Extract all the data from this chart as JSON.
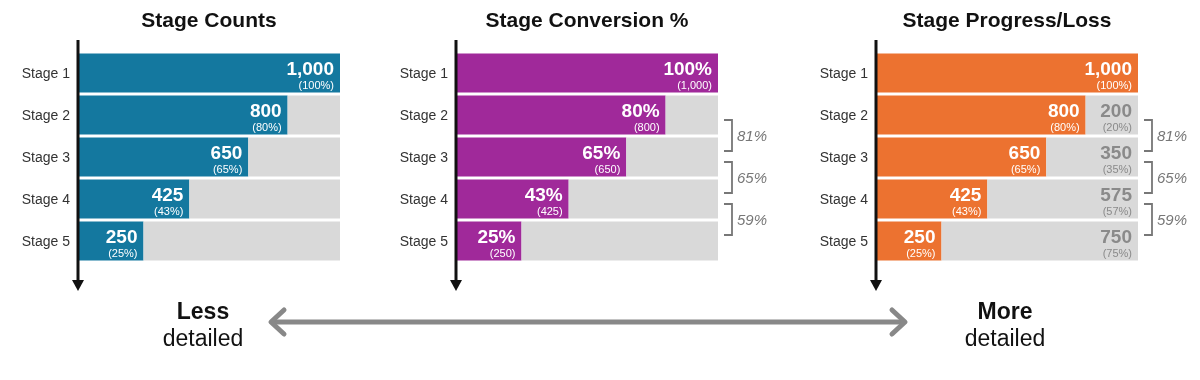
{
  "chart_data": [
    {
      "type": "bar",
      "title": "Stage Counts",
      "orientation": "horizontal",
      "stacked": true,
      "categories": [
        "Stage 1",
        "Stage 2",
        "Stage 3",
        "Stage 4",
        "Stage 5"
      ],
      "series": [
        {
          "color": "#14789f",
          "values": [
            1000,
            800,
            650,
            425,
            250
          ],
          "value_labels": [
            "1,000 (100%)",
            "800 (80%)",
            "650 (65%)",
            "425 (43%)",
            "250 (25%)"
          ]
        },
        {
          "color": "#d9d9d9",
          "values": [
            0,
            200,
            350,
            575,
            750
          ]
        }
      ]
    },
    {
      "type": "bar",
      "title": "Stage Conversion %",
      "orientation": "horizontal",
      "stacked": true,
      "categories": [
        "Stage 1",
        "Stage 2",
        "Stage 3",
        "Stage 4",
        "Stage 5"
      ],
      "series": [
        {
          "color": "#a0299a",
          "values": [
            100,
            80,
            65,
            43,
            25
          ],
          "value_labels": [
            "100% (1,000)",
            "80% (800)",
            "65% (650)",
            "43% (425)",
            "25% (250)"
          ]
        },
        {
          "color": "#d9d9d9",
          "values": [
            0,
            20,
            35,
            57,
            75
          ]
        }
      ],
      "annotations": [
        "81%",
        "65%",
        "59%"
      ]
    },
    {
      "type": "bar",
      "title": "Stage Progress/Loss",
      "orientation": "horizontal",
      "stacked": true,
      "categories": [
        "Stage 1",
        "Stage 2",
        "Stage 3",
        "Stage 4",
        "Stage 5"
      ],
      "series": [
        {
          "color": "#ec7230",
          "values": [
            1000,
            800,
            650,
            425,
            250
          ],
          "value_labels": [
            "1,000 (100%)",
            "800 (80%)",
            "650 (65%)",
            "425 (43%)",
            "250 (25%)"
          ]
        },
        {
          "color": "#d9d9d9",
          "values": [
            0,
            200,
            350,
            575,
            750
          ],
          "value_labels": [
            null,
            "200 (20%)",
            "350 (35%)",
            "575 (57%)",
            "750 (75%)"
          ]
        }
      ],
      "annotations": [
        "81%",
        "65%",
        "59%"
      ]
    },
    {
      "type": "other",
      "annotations": [
        "Less detailed",
        "More detailed"
      ]
    }
  ]
}
